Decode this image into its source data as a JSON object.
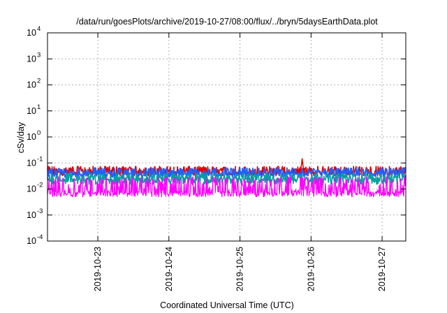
{
  "chart_data": {
    "type": "line",
    "title": "/data/run/goesPlots/archive/2019-10-27/08:00/flux/../bryn/5daysEarthData.plot",
    "xlabel": "Coordinated Universal Time (UTC)",
    "ylabel": "cSv/day",
    "x_scale": "date",
    "xlim": [
      "2019-10-22T07:00",
      "2019-10-27T08:00"
    ],
    "x_ticks": [
      "2019-10-23",
      "2019-10-24",
      "2019-10-25",
      "2019-10-26",
      "2019-10-27"
    ],
    "y_scale": "log",
    "ylim": [
      0.0001,
      10000
    ],
    "y_ticks": [
      {
        "base": "10",
        "exp": "-4",
        "value": 0.0001
      },
      {
        "base": "10",
        "exp": "-3",
        "value": 0.001
      },
      {
        "base": "10",
        "exp": "-2",
        "value": 0.01
      },
      {
        "base": "10",
        "exp": "-1",
        "value": 0.1
      },
      {
        "base": "10",
        "exp": "0",
        "value": 1
      },
      {
        "base": "10",
        "exp": "1",
        "value": 10
      },
      {
        "base": "10",
        "exp": "2",
        "value": 100
      },
      {
        "base": "10",
        "exp": "3",
        "value": 1000
      },
      {
        "base": "10",
        "exp": "4",
        "value": 10000
      }
    ],
    "grid": true,
    "series": [
      {
        "color": "#e00000",
        "base": 0.045,
        "spread_high": 0.075,
        "spread_low": 0.032
      },
      {
        "color": "#2060ff",
        "base": 0.04,
        "spread_high": 0.065,
        "spread_low": 0.028
      },
      {
        "color": "#00a0a0",
        "base": 0.025,
        "spread_high": 0.04,
        "spread_low": 0.015
      },
      {
        "color": "#ff00ff",
        "base": 0.008,
        "spread_high": 0.03,
        "spread_low": 0.005
      }
    ],
    "peak": {
      "x": "2019-10-25T21:00",
      "y": 0.15
    }
  }
}
